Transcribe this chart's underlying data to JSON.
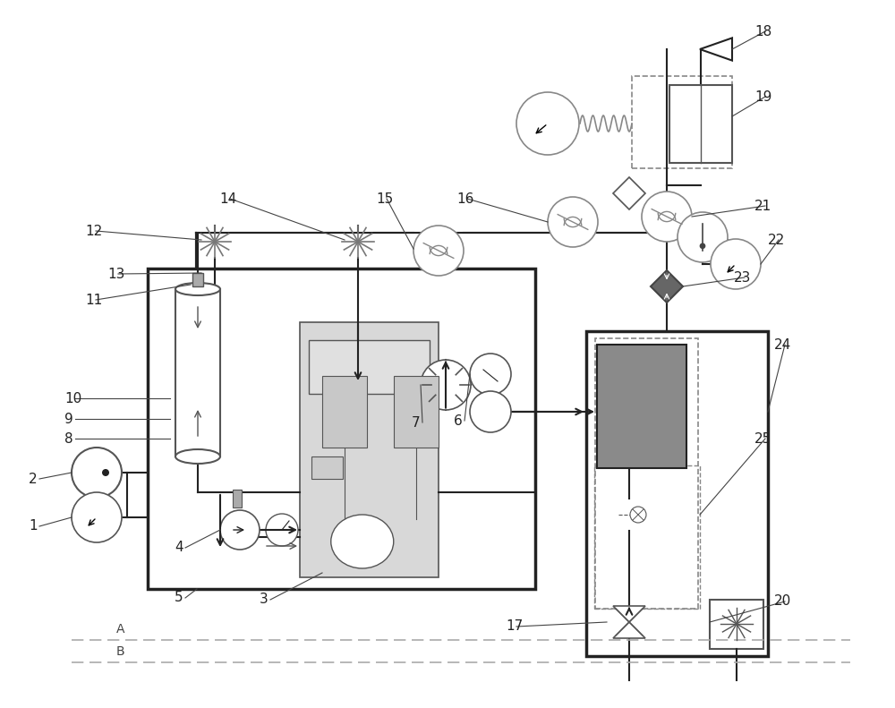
{
  "bg_color": "#ffffff",
  "line_color": "#555555",
  "dark_line": "#222222",
  "light_gray": "#bbbbbb",
  "medium_gray": "#888888",
  "dark_gray": "#777777",
  "heater_gray": "#8a8a8a",
  "label_fontsize": 11
}
